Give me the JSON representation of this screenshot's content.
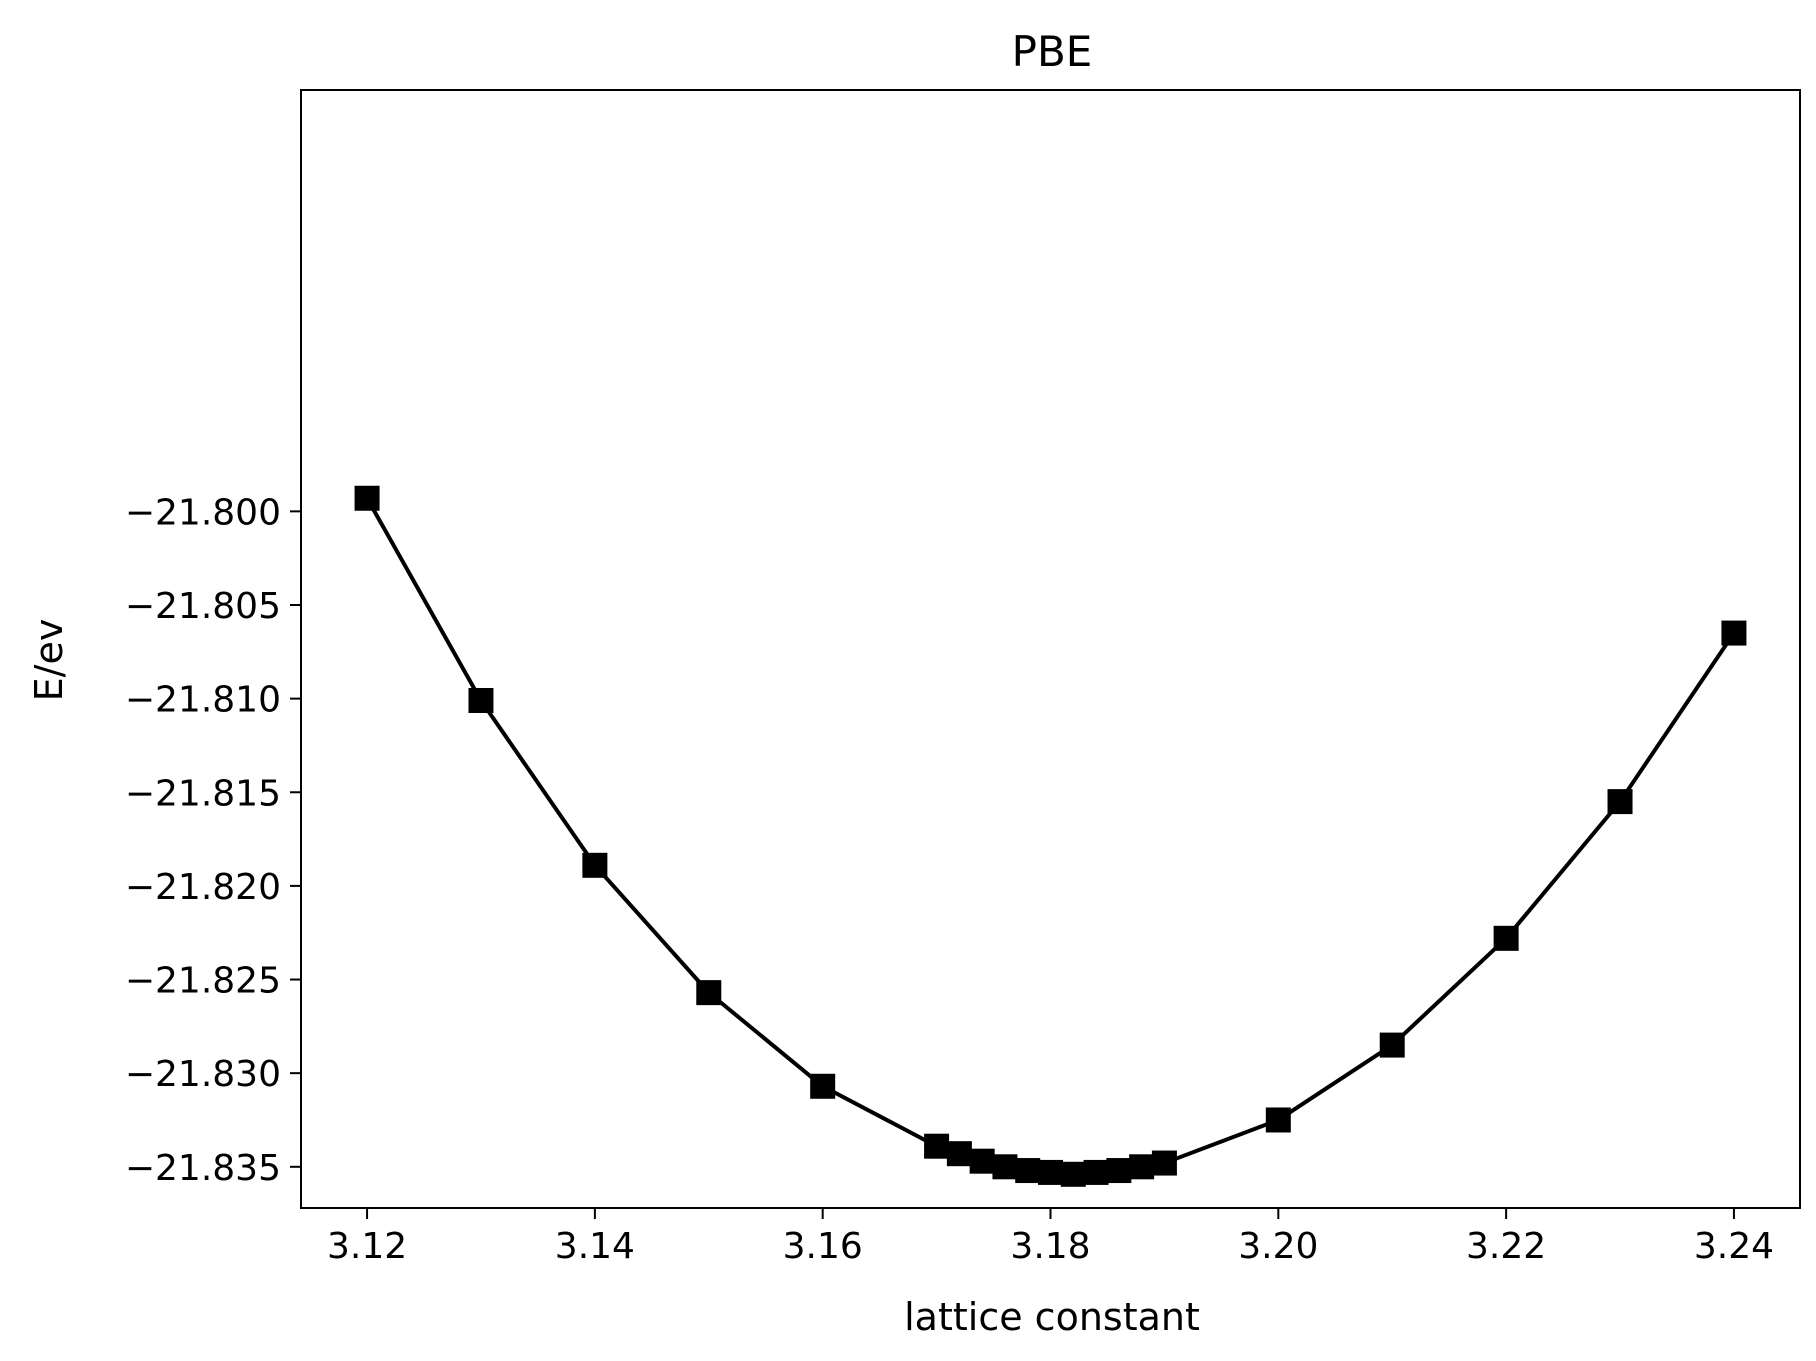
{
  "chart_data": {
    "type": "line",
    "title": "PBE",
    "xlabel": "lattice constant",
    "ylabel": "E/ev",
    "xlim": [
      3.1142,
      3.2458
    ],
    "ylim": [
      -21.8372,
      -21.7775
    ],
    "x_ticks": [
      3.12,
      3.14,
      3.16,
      3.18,
      3.2,
      3.22,
      3.24
    ],
    "x_tick_labels": [
      "3.12",
      "3.14",
      "3.16",
      "3.18",
      "3.20",
      "3.22",
      "3.24"
    ],
    "y_ticks": [
      -21.8,
      -21.805,
      -21.81,
      -21.815,
      -21.82,
      -21.825,
      -21.83,
      -21.835
    ],
    "y_tick_labels": [
      "−21.800",
      "−21.805",
      "−21.810",
      "−21.815",
      "−21.820",
      "−21.825",
      "−21.830",
      "−21.835"
    ],
    "grid": false,
    "series": [
      {
        "color": "#000000",
        "marker": "square",
        "x": [
          3.12,
          3.13,
          3.14,
          3.15,
          3.16,
          3.17,
          3.172,
          3.174,
          3.176,
          3.178,
          3.18,
          3.182,
          3.184,
          3.186,
          3.188,
          3.19,
          3.2,
          3.21,
          3.22,
          3.23,
          3.24
        ],
        "y": [
          -21.7993,
          -21.8101,
          -21.8189,
          -21.8257,
          -21.8307,
          -21.8339,
          -21.8343,
          -21.8347,
          -21.835,
          -21.8352,
          -21.8353,
          -21.8354,
          -21.8353,
          -21.8352,
          -21.835,
          -21.8348,
          -21.8325,
          -21.8285,
          -21.8228,
          -21.8155,
          -21.8065
        ]
      }
    ]
  }
}
